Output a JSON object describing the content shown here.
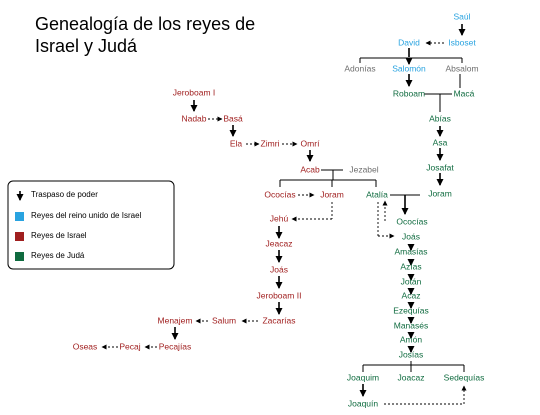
{
  "title_lines": [
    "Genealogía de los reyes de",
    "Israel y Judá"
  ],
  "nodes": {
    "saul": {
      "label": "Saúl",
      "kind": "united"
    },
    "isboset": {
      "label": "Isboset",
      "kind": "united"
    },
    "david": {
      "label": "David",
      "kind": "united"
    },
    "adonias": {
      "label": "Adonías",
      "kind": "other"
    },
    "salomon": {
      "label": "Salomón",
      "kind": "united"
    },
    "absalom": {
      "label": "Absalom",
      "kind": "other"
    },
    "roboam": {
      "label": "Roboam",
      "kind": "juda"
    },
    "maca": {
      "label": "Macá",
      "kind": "juda"
    },
    "abias": {
      "label": "Abías",
      "kind": "juda"
    },
    "asa": {
      "label": "Asa",
      "kind": "juda"
    },
    "josafat": {
      "label": "Josafat",
      "kind": "juda"
    },
    "joram_j": {
      "label": "Joram",
      "kind": "juda"
    },
    "jeroboam1": {
      "label": "Jeroboam I",
      "kind": "israel"
    },
    "nadab": {
      "label": "Nadab",
      "kind": "israel"
    },
    "basa": {
      "label": "Basá",
      "kind": "israel"
    },
    "ela": {
      "label": "Ela",
      "kind": "israel"
    },
    "zimri": {
      "label": "Zimri",
      "kind": "israel"
    },
    "omri": {
      "label": "Omrí",
      "kind": "israel"
    },
    "acab": {
      "label": "Acab",
      "kind": "israel"
    },
    "jezabel": {
      "label": "Jezabel",
      "kind": "other"
    },
    "ococias_i": {
      "label": "Ococías",
      "kind": "israel"
    },
    "joram_i": {
      "label": "Joram",
      "kind": "israel"
    },
    "atalia": {
      "label": "Atalía",
      "kind": "juda"
    },
    "ococias_j": {
      "label": "Ococías",
      "kind": "juda"
    },
    "jehu": {
      "label": "Jehú",
      "kind": "israel"
    },
    "joas_j": {
      "label": "Joás",
      "kind": "juda"
    },
    "jeacaz": {
      "label": "Jeacaz",
      "kind": "israel"
    },
    "amasias": {
      "label": "Amasías",
      "kind": "juda"
    },
    "azias": {
      "label": "Azías",
      "kind": "juda"
    },
    "joas_i": {
      "label": "Joás",
      "kind": "israel"
    },
    "jotan": {
      "label": "Jotán",
      "kind": "juda"
    },
    "jeroboam2": {
      "label": "Jeroboam II",
      "kind": "israel"
    },
    "acaz": {
      "label": "Acaz",
      "kind": "juda"
    },
    "ezequias": {
      "label": "Ezequías",
      "kind": "juda"
    },
    "menajem": {
      "label": "Menajem",
      "kind": "israel"
    },
    "salum": {
      "label": "Salum",
      "kind": "israel"
    },
    "zacarias": {
      "label": "Zacarías",
      "kind": "israel"
    },
    "manases": {
      "label": "Manasés",
      "kind": "juda"
    },
    "oseas": {
      "label": "Oseas",
      "kind": "israel"
    },
    "pecaj": {
      "label": "Pecaj",
      "kind": "israel"
    },
    "pecajias": {
      "label": "Pecajías",
      "kind": "israel"
    },
    "amon": {
      "label": "Amón",
      "kind": "juda"
    },
    "josias": {
      "label": "Josías",
      "kind": "juda"
    },
    "joaquim": {
      "label": "Joaquim",
      "kind": "juda"
    },
    "joacaz": {
      "label": "Joacaz",
      "kind": "juda"
    },
    "sedequias": {
      "label": "Sedequías",
      "kind": "juda"
    },
    "joaquin": {
      "label": "Joaquín",
      "kind": "juda"
    }
  },
  "legend": [
    {
      "label": "Traspaso de poder",
      "marker": "arrow"
    },
    {
      "label": "Reyes del reino unido de Israel",
      "color": "#29a3e0"
    },
    {
      "label": "Reyes de Israel",
      "color": "#a01f1f"
    },
    {
      "label": "Reyes de Judá",
      "color": "#0f6b3f"
    }
  ]
}
